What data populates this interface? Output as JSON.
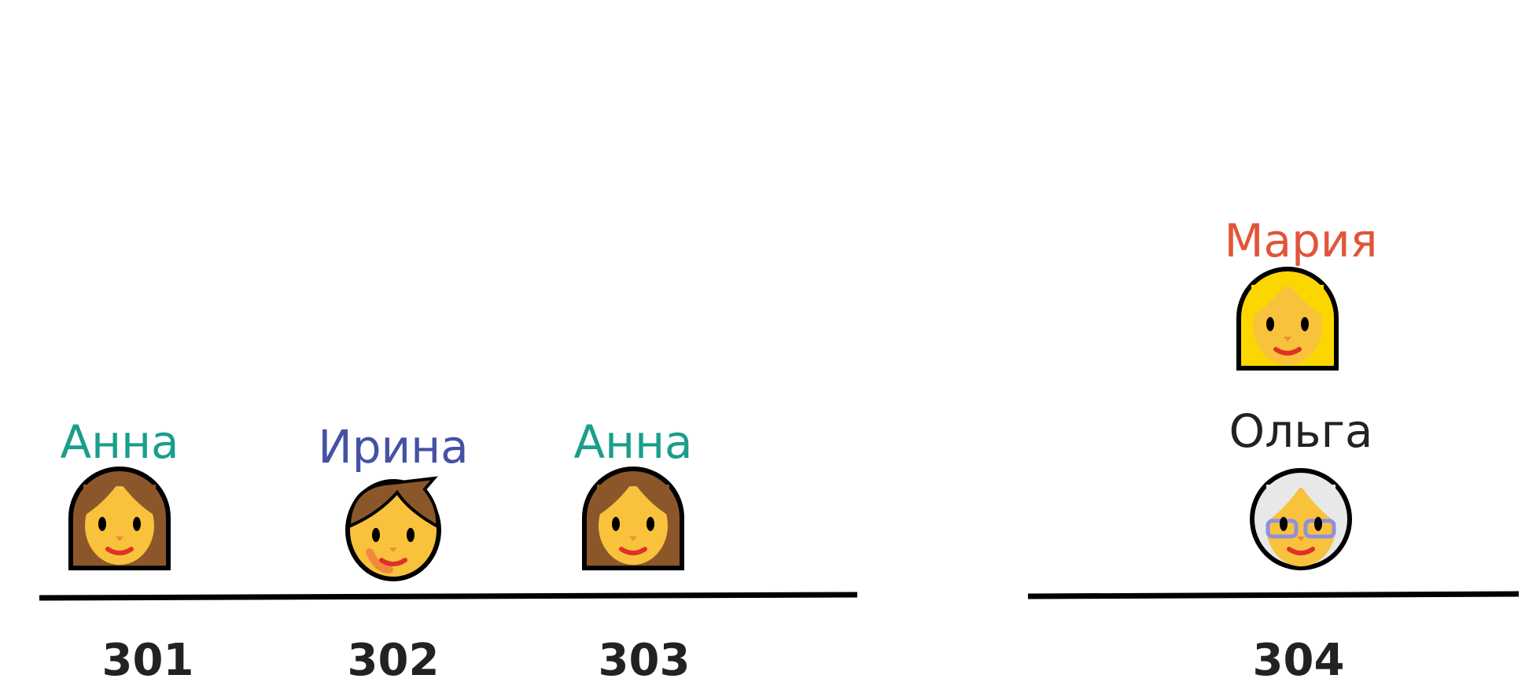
{
  "people": [
    {
      "name": "Анна"
    },
    {
      "name": "Ирина"
    },
    {
      "name": "Анна"
    },
    {
      "name": "Мария"
    },
    {
      "name": "Ольга"
    }
  ],
  "rooms": [
    "301",
    "302",
    "303",
    "304"
  ]
}
